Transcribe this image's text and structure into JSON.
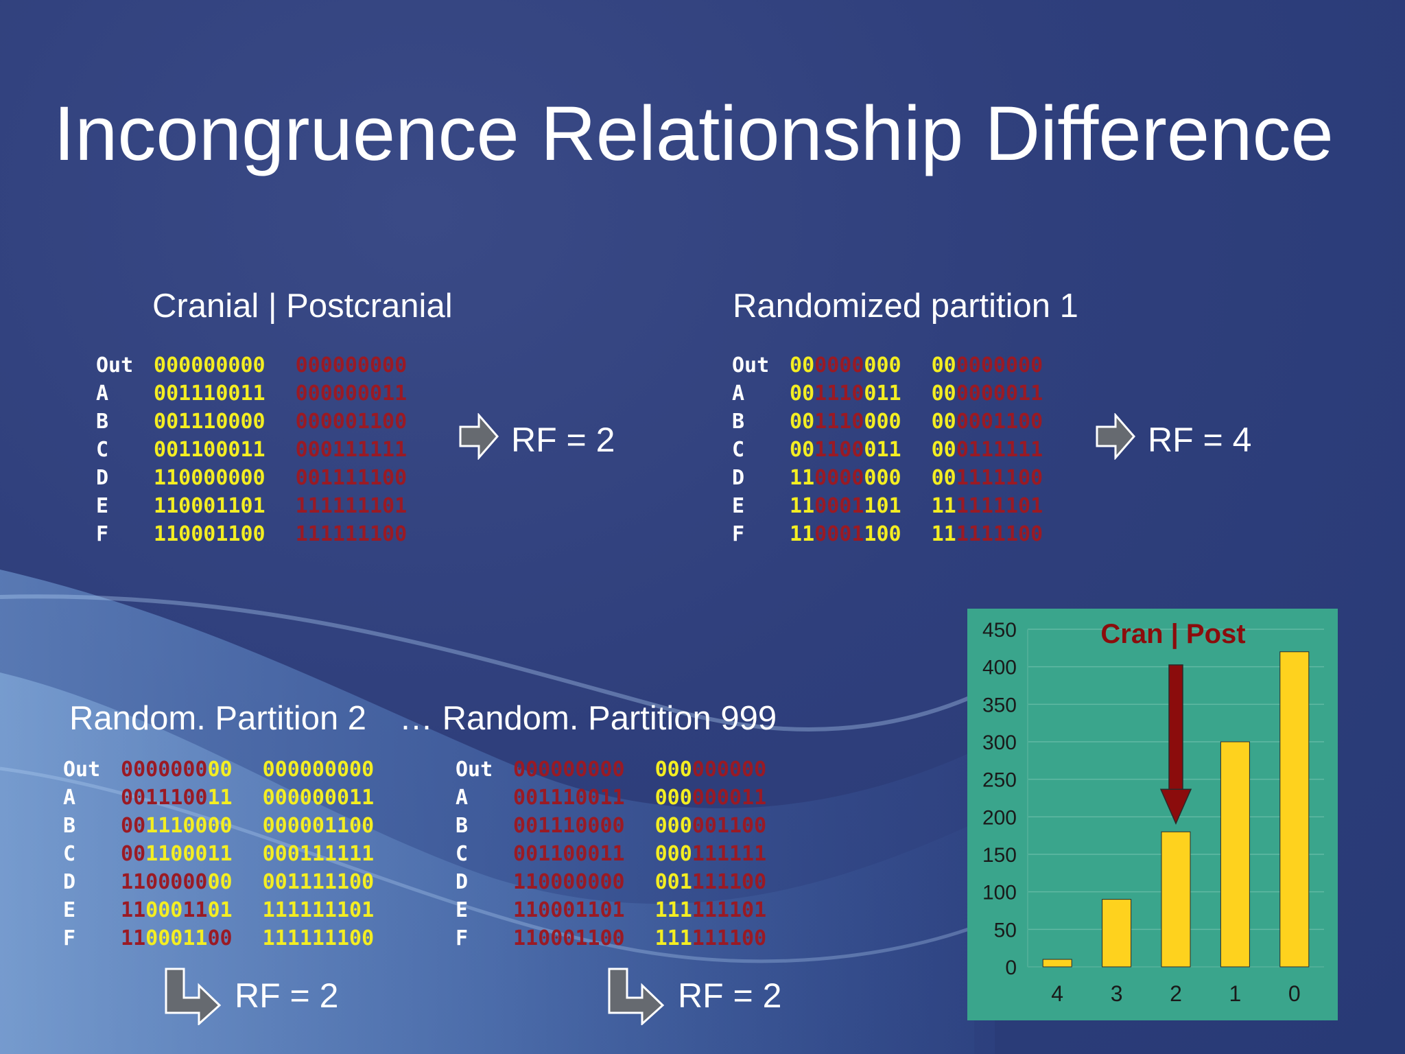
{
  "title": "Incongruence Relationship Difference",
  "panels": [
    {
      "heading": "Cranial | Postcranial",
      "rf": "RF = 2",
      "rows": [
        {
          "label": "Out",
          "a": "000000000",
          "b": "000000000",
          "ca": "yyyyyyyyy",
          "cb": "rrrrrrrrr"
        },
        {
          "label": "A",
          "a": "001110011",
          "b": "000000011",
          "ca": "yyyyyyyyy",
          "cb": "rrrrrrrrr"
        },
        {
          "label": "B",
          "a": "001110000",
          "b": "000001100",
          "ca": "yyyyyyyyy",
          "cb": "rrrrrrrrr"
        },
        {
          "label": "C",
          "a": "001100011",
          "b": "000111111",
          "ca": "yyyyyyyyy",
          "cb": "rrrrrrrrr"
        },
        {
          "label": "D",
          "a": "110000000",
          "b": "001111100",
          "ca": "yyyyyyyyy",
          "cb": "rrrrrrrrr"
        },
        {
          "label": "E",
          "a": "110001101",
          "b": "111111101",
          "ca": "yyyyyyyyy",
          "cb": "rrrrrrrrr"
        },
        {
          "label": "F",
          "a": "110001100",
          "b": "111111100",
          "ca": "yyyyyyyyy",
          "cb": "rrrrrrrrr"
        }
      ]
    },
    {
      "heading": "Randomized partition 1",
      "rf": "RF = 4",
      "rows": [
        {
          "label": "Out",
          "a": "000000000",
          "b": "000000000",
          "ca": "yyrrrryyy",
          "cb": "yyrrrrrrr"
        },
        {
          "label": "A",
          "a": "001110011",
          "b": "000000011",
          "ca": "yyrrrryyy",
          "cb": "yyrrrrrrr"
        },
        {
          "label": "B",
          "a": "001110000",
          "b": "000001100",
          "ca": "yyrrrryyy",
          "cb": "yyrrrrrrr"
        },
        {
          "label": "C",
          "a": "001100011",
          "b": "000111111",
          "ca": "yyrrrryyy",
          "cb": "yyrrrrrrr"
        },
        {
          "label": "D",
          "a": "110000000",
          "b": "001111100",
          "ca": "yyrrrryyy",
          "cb": "yyrrrrrrr"
        },
        {
          "label": "E",
          "a": "110001101",
          "b": "111111101",
          "ca": "yyrrrryyy",
          "cb": "yyrrrrrrr"
        },
        {
          "label": "F",
          "a": "110001100",
          "b": "111111100",
          "ca": "yyrrrryyy",
          "cb": "yyrrrrrrr"
        }
      ]
    },
    {
      "heading": "Random. Partition 2",
      "rf": "RF = 2",
      "rows": [
        {
          "label": "Out",
          "a": "000000000",
          "b": "000000000",
          "ca": "rrrrrrryy",
          "cb": "yyyyyyyyy"
        },
        {
          "label": "A",
          "a": "001110011",
          "b": "000000011",
          "ca": "rrrrrrryy",
          "cb": "yyyyyyyyy"
        },
        {
          "label": "B",
          "a": "001110000",
          "b": "000001100",
          "ca": "rryyyyyyy",
          "cb": "yyyyyyyyy"
        },
        {
          "label": "C",
          "a": "001100011",
          "b": "000111111",
          "ca": "rryyyyyyy",
          "cb": "yyyyyyyyy"
        },
        {
          "label": "D",
          "a": "110000000",
          "b": "001111100",
          "ca": "rrrrrrryy",
          "cb": "yyyyyyyyy"
        },
        {
          "label": "E",
          "a": "110001101",
          "b": "111111101",
          "ca": "rryyyrryy",
          "cb": "yyyyyyyyy"
        },
        {
          "label": "F",
          "a": "110001100",
          "b": "111111100",
          "ca": "rryyyyyrr",
          "cb": "yyyyyyyyy"
        }
      ]
    },
    {
      "heading": "… Random. Partition 999",
      "rf": "RF = 2",
      "rows": [
        {
          "label": "Out",
          "a": "000000000",
          "b": "000000000",
          "ca": "rrrrrrrrr",
          "cb": "yyyrrrrrr"
        },
        {
          "label": "A",
          "a": "001110011",
          "b": "000000011",
          "ca": "rrrrrrrrr",
          "cb": "yyyrrrrrr"
        },
        {
          "label": "B",
          "a": "001110000",
          "b": "000001100",
          "ca": "rrrrrrrrr",
          "cb": "yyyrrrrrr"
        },
        {
          "label": "C",
          "a": "001100011",
          "b": "000111111",
          "ca": "rrrrrrrrr",
          "cb": "yyyrrrrrr"
        },
        {
          "label": "D",
          "a": "110000000",
          "b": "001111100",
          "ca": "rrrrrrrrr",
          "cb": "yyyrrrrrr"
        },
        {
          "label": "E",
          "a": "110001101",
          "b": "111111101",
          "ca": "rrrrrrrrr",
          "cb": "yyyrrrrrr"
        },
        {
          "label": "F",
          "a": "110001100",
          "b": "111111100",
          "ca": "rrrrrrrrr",
          "cb": "yyyrrrrrr"
        }
      ]
    }
  ],
  "chart_data": {
    "type": "bar",
    "title": "Cran | Post",
    "categories": [
      "4",
      "3",
      "2",
      "1",
      "0"
    ],
    "values": [
      10,
      90,
      180,
      300,
      420
    ],
    "ylim": [
      0,
      450
    ],
    "yticks": [
      0,
      50,
      100,
      150,
      200,
      250,
      300,
      350,
      400,
      450
    ],
    "highlight_category": "2",
    "bar_color": "#fed21e",
    "marker_color": "#8b0c0c",
    "background_color": "#3aa58c"
  },
  "colors": {
    "yellow_digit": "#f4ee22",
    "red_digit": "#9a1a24",
    "background": "#2f3f7c"
  }
}
